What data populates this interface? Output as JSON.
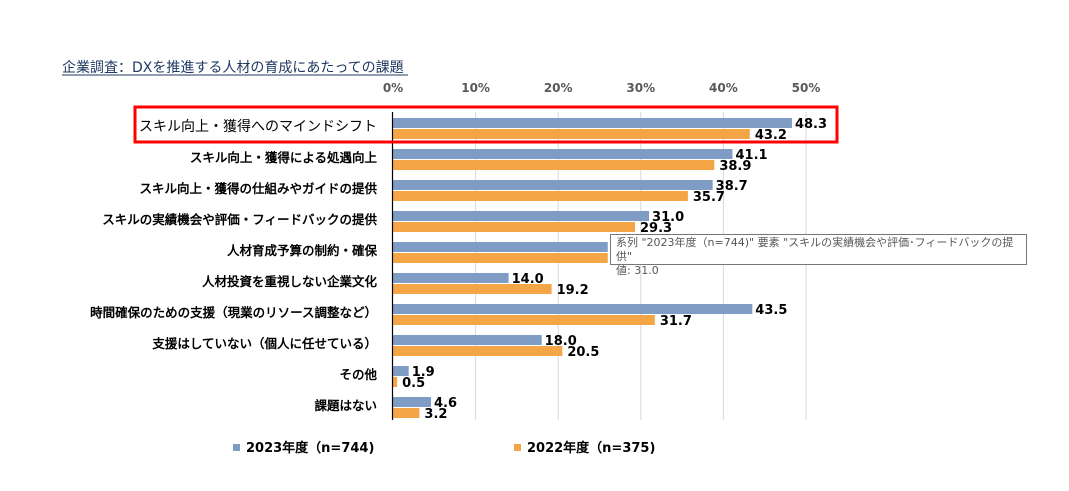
{
  "chart_data": {
    "type": "bar",
    "orientation": "horizontal",
    "title": "企業調査：DXを推進する人材の育成にあたっての課題",
    "xlabel": "",
    "ylabel": "",
    "xlim": [
      0,
      50
    ],
    "x_ticks": [
      "0%",
      "10%",
      "20%",
      "30%",
      "40%",
      "50%"
    ],
    "grid": true,
    "legend_position": "bottom",
    "categories": [
      "スキル向上・獲得へのマインドシフト",
      "スキル向上・獲得による処遇向上",
      "スキル向上・獲得の仕組みやガイドの提供",
      "スキルの実績機会や評価・フィードバックの提供",
      "人材育成予算の制約・確保",
      "人材投資を重視しない企業文化",
      "時間確保のための支援（現業のリソース調整など）",
      "支援はしていない（個人に任せている）",
      "その他",
      "課題はない"
    ],
    "series": [
      {
        "name": "2023年度（n=744)",
        "color": "#7f9dc4",
        "values": [
          48.3,
          41.1,
          38.7,
          31.0,
          null,
          14.0,
          43.5,
          18.0,
          1.9,
          4.6
        ],
        "labels": [
          "48.3",
          "41.1",
          "38.7",
          "31.0",
          "",
          "14.0",
          "43.5",
          "18.0",
          "1.9",
          "4.6"
        ]
      },
      {
        "name": "2022年度（n=375)",
        "color": "#f4a647",
        "values": [
          43.2,
          38.9,
          35.7,
          29.3,
          null,
          19.2,
          31.7,
          20.5,
          0.5,
          3.2
        ],
        "labels": [
          "43.2",
          "38.9",
          "35.7",
          "29.3",
          "",
          "19.2",
          "31.7",
          "20.5",
          "0.5",
          "3.2"
        ]
      }
    ],
    "hidden_bar_approx": {
      "category_index": 4,
      "series_2023_min": 26,
      "series_2022_min": 26
    },
    "highlight": {
      "category_index": 0,
      "color": "#ff0000"
    }
  },
  "tooltip": {
    "line1": "系列 \"2023年度（n=744)\" 要素 \"スキルの実績機会や評価･フィードバックの提供\"",
    "line2": "値: 31.0"
  }
}
